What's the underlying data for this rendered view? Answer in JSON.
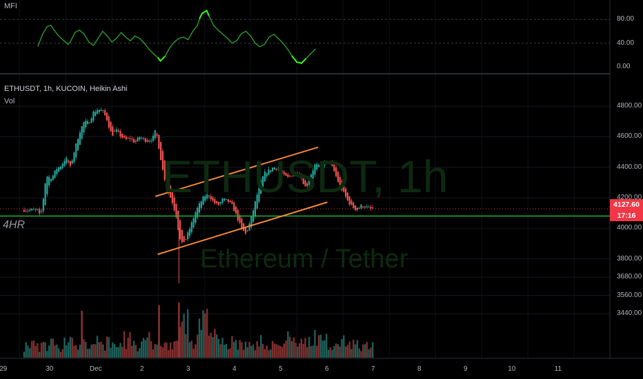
{
  "mfi_panel": {
    "title": "MFI",
    "y_ticks": [
      "80.00",
      "40.00",
      "0.00"
    ]
  },
  "main_panel": {
    "symbol_info": "ETHUSDT, 1h, KUCOIN, Heikin Ashi",
    "volume_label": "Vol",
    "watermark_symbol": "ETHUSDT, 1h",
    "watermark_name": "Ethereum / Tether",
    "annotation": "4HR",
    "price_ticks": [
      "4800.00",
      "4600.00",
      "4400.00",
      "4200.00",
      "4000.00",
      "3800.00",
      "3680.00",
      "3560.00",
      "3440.00"
    ],
    "current_price": "4127.60",
    "countdown": "17:16"
  },
  "x_axis": {
    "labels": [
      "29",
      "30",
      "Dec",
      "2",
      "3",
      "4",
      "5",
      "6",
      "7",
      "8",
      "9",
      "10",
      "11"
    ]
  },
  "colors": {
    "up": "#26a69a",
    "down": "#ef5350",
    "channel": "#f5883a",
    "support": "#1fb236",
    "mfi_line": "#2e9b2e",
    "mfi_extreme": "#39ff14",
    "price_badge": "#f23645"
  },
  "chart_data": {
    "type": "candlestick",
    "price_path": [
      [
        0,
        4120
      ],
      [
        0.05,
        4070
      ],
      [
        0.1,
        4150
      ],
      [
        0.15,
        4290
      ],
      [
        0.2,
        4340
      ],
      [
        0.3,
        4330
      ],
      [
        0.35,
        4360
      ],
      [
        0.4,
        4390
      ],
      [
        0.5,
        4410
      ],
      [
        0.6,
        4460
      ],
      [
        0.65,
        4440
      ],
      [
        0.7,
        4400
      ],
      [
        0.8,
        4520
      ],
      [
        0.9,
        4630
      ],
      [
        1.0,
        4700
      ],
      [
        1.1,
        4690
      ],
      [
        1.2,
        4760
      ],
      [
        1.3,
        4780
      ],
      [
        1.4,
        4770
      ],
      [
        1.5,
        4710
      ],
      [
        1.55,
        4650
      ],
      [
        1.6,
        4610
      ],
      [
        1.7,
        4640
      ],
      [
        1.8,
        4600
      ],
      [
        1.9,
        4580
      ],
      [
        2.0,
        4590
      ],
      [
        2.1,
        4560
      ],
      [
        2.2,
        4600
      ],
      [
        2.3,
        4580
      ],
      [
        2.4,
        4570
      ],
      [
        2.5,
        4600
      ],
      [
        2.55,
        4650
      ],
      [
        2.6,
        4560
      ],
      [
        2.7,
        4380
      ],
      [
        2.8,
        4250
      ],
      [
        2.9,
        4180
      ],
      [
        3.0,
        4070
      ],
      [
        3.05,
        3960
      ],
      [
        3.1,
        3890
      ],
      [
        3.2,
        3930
      ],
      [
        3.3,
        4010
      ],
      [
        3.4,
        4100
      ],
      [
        3.5,
        4160
      ],
      [
        3.6,
        4210
      ],
      [
        3.7,
        4220
      ],
      [
        3.8,
        4170
      ],
      [
        3.9,
        4150
      ],
      [
        4.0,
        4190
      ],
      [
        4.1,
        4180
      ],
      [
        4.2,
        4150
      ],
      [
        4.3,
        4080
      ],
      [
        4.4,
        4000
      ],
      [
        4.5,
        3960
      ],
      [
        4.6,
        4050
      ],
      [
        4.7,
        4170
      ],
      [
        4.8,
        4290
      ],
      [
        4.9,
        4360
      ],
      [
        5.0,
        4380
      ],
      [
        5.1,
        4400
      ],
      [
        5.2,
        4390
      ],
      [
        5.3,
        4350
      ],
      [
        5.4,
        4330
      ],
      [
        5.5,
        4350
      ],
      [
        5.6,
        4370
      ],
      [
        5.7,
        4330
      ],
      [
        5.8,
        4260
      ],
      [
        5.9,
        4350
      ],
      [
        6.0,
        4420
      ],
      [
        6.1,
        4400
      ],
      [
        6.2,
        4430
      ],
      [
        6.3,
        4440
      ],
      [
        6.4,
        4380
      ],
      [
        6.5,
        4300
      ],
      [
        6.6,
        4240
      ],
      [
        6.7,
        4180
      ],
      [
        6.8,
        4140
      ],
      [
        6.9,
        4120
      ],
      [
        7.0,
        4150
      ],
      [
        7.1,
        4140
      ],
      [
        7.2,
        4128
      ]
    ],
    "mfi_path": [
      [
        0,
        35
      ],
      [
        0.1,
        55
      ],
      [
        0.2,
        68
      ],
      [
        0.28,
        70
      ],
      [
        0.35,
        62
      ],
      [
        0.45,
        52
      ],
      [
        0.55,
        45
      ],
      [
        0.65,
        38
      ],
      [
        0.7,
        42
      ],
      [
        0.8,
        58
      ],
      [
        0.9,
        62
      ],
      [
        1.0,
        55
      ],
      [
        1.1,
        42
      ],
      [
        1.2,
        36
      ],
      [
        1.3,
        48
      ],
      [
        1.4,
        60
      ],
      [
        1.5,
        52
      ],
      [
        1.6,
        42
      ],
      [
        1.7,
        48
      ],
      [
        1.8,
        58
      ],
      [
        1.9,
        50
      ],
      [
        2.0,
        44
      ],
      [
        2.1,
        52
      ],
      [
        2.2,
        48
      ],
      [
        2.3,
        40
      ],
      [
        2.4,
        30
      ],
      [
        2.5,
        22
      ],
      [
        2.6,
        15
      ],
      [
        2.65,
        10
      ],
      [
        2.75,
        18
      ],
      [
        2.85,
        32
      ],
      [
        2.95,
        42
      ],
      [
        3.05,
        48
      ],
      [
        3.15,
        50
      ],
      [
        3.25,
        46
      ],
      [
        3.35,
        60
      ],
      [
        3.45,
        70
      ],
      [
        3.5,
        82
      ],
      [
        3.55,
        90
      ],
      [
        3.65,
        95
      ],
      [
        3.7,
        86
      ],
      [
        3.8,
        70
      ],
      [
        3.9,
        62
      ],
      [
        4.0,
        55
      ],
      [
        4.1,
        48
      ],
      [
        4.2,
        40
      ],
      [
        4.3,
        44
      ],
      [
        4.4,
        56
      ],
      [
        4.5,
        60
      ],
      [
        4.6,
        52
      ],
      [
        4.7,
        40
      ],
      [
        4.8,
        34
      ],
      [
        4.9,
        38
      ],
      [
        5.0,
        50
      ],
      [
        5.1,
        55
      ],
      [
        5.2,
        48
      ],
      [
        5.3,
        40
      ],
      [
        5.4,
        30
      ],
      [
        5.5,
        18
      ],
      [
        5.6,
        8
      ],
      [
        5.7,
        6
      ],
      [
        5.8,
        14
      ],
      [
        5.9,
        22
      ],
      [
        6.0,
        30
      ]
    ],
    "volume_profile": [
      0.35,
      0.3,
      0.4,
      0.25,
      0.45,
      0.3,
      0.35,
      0.55,
      0.4,
      0.3,
      0.5,
      0.35,
      0.6,
      0.4,
      0.3,
      0.45,
      0.95,
      0.5,
      1.0,
      0.55,
      0.4,
      0.45,
      0.35,
      0.3,
      0.45,
      0.4,
      0.35,
      0.5,
      0.45,
      0.4,
      0.55,
      0.45,
      0.5,
      0.4,
      0.35,
      0.3
    ],
    "channel_upper": [
      [
        2.55,
        4210
      ],
      [
        6.05,
        4530
      ]
    ],
    "channel_lower": [
      [
        2.6,
        3830
      ],
      [
        6.25,
        4170
      ]
    ],
    "support_level": 4080
  }
}
